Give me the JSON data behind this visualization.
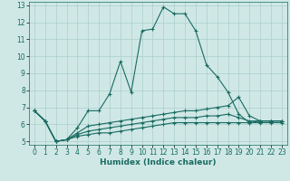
{
  "xlabel": "Humidex (Indice chaleur)",
  "xlim": [
    -0.5,
    23.5
  ],
  "ylim": [
    4.8,
    13.2
  ],
  "yticks": [
    5,
    6,
    7,
    8,
    9,
    10,
    11,
    12,
    13
  ],
  "xticks": [
    0,
    1,
    2,
    3,
    4,
    5,
    6,
    7,
    8,
    9,
    10,
    11,
    12,
    13,
    14,
    15,
    16,
    17,
    18,
    19,
    20,
    21,
    22,
    23
  ],
  "bg_color": "#cfe8e6",
  "line_color": "#1a6b62",
  "grid_color": "#aacfcc",
  "series": [
    [
      6.8,
      6.2,
      5.0,
      5.1,
      5.8,
      6.8,
      6.8,
      7.8,
      9.7,
      7.9,
      11.5,
      11.6,
      12.9,
      12.5,
      12.5,
      11.5,
      9.5,
      8.8,
      7.9,
      6.6,
      6.1,
      6.2,
      6.2,
      6.2
    ],
    [
      6.8,
      6.2,
      5.0,
      5.1,
      5.5,
      5.9,
      6.0,
      6.1,
      6.2,
      6.3,
      6.4,
      6.5,
      6.6,
      6.7,
      6.8,
      6.8,
      6.9,
      7.0,
      7.1,
      7.6,
      6.5,
      6.2,
      6.2,
      6.2
    ],
    [
      6.8,
      6.2,
      5.0,
      5.1,
      5.4,
      5.6,
      5.7,
      5.8,
      5.9,
      6.0,
      6.1,
      6.2,
      6.3,
      6.4,
      6.4,
      6.4,
      6.5,
      6.5,
      6.6,
      6.4,
      6.2,
      6.2,
      6.2,
      6.2
    ],
    [
      6.8,
      6.2,
      5.0,
      5.1,
      5.3,
      5.4,
      5.5,
      5.5,
      5.6,
      5.7,
      5.8,
      5.9,
      6.0,
      6.1,
      6.1,
      6.1,
      6.1,
      6.1,
      6.1,
      6.1,
      6.1,
      6.1,
      6.1,
      6.1
    ]
  ]
}
